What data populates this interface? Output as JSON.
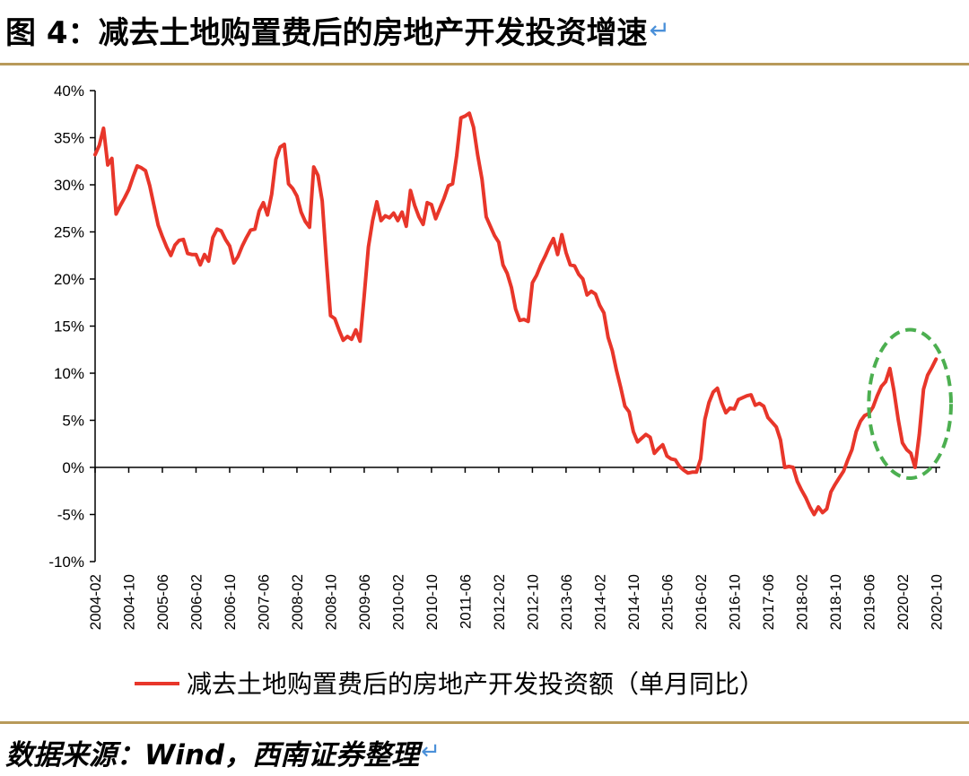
{
  "figure": {
    "title": "图 4：减去土地购置费后的房地产开发投资增速",
    "source": "数据来源：Wind，西南证券整理",
    "return_glyph": "↵"
  },
  "colors": {
    "series": "#e8362a",
    "highlight": "#4caf50",
    "rule": "#b89a5a",
    "axis": "#000000"
  },
  "chart_data": {
    "type": "line",
    "title": "",
    "xlabel": "",
    "ylabel": "",
    "ylim": [
      -10,
      40
    ],
    "y_ticks": [
      -10,
      -5,
      0,
      5,
      10,
      15,
      20,
      25,
      30,
      35,
      40
    ],
    "y_tick_labels": [
      "-10%",
      "-5%",
      "0%",
      "5%",
      "10%",
      "15%",
      "20%",
      "25%",
      "30%",
      "35%",
      "40%"
    ],
    "x_tick_labels": [
      "2004-02",
      "2004-10",
      "2005-06",
      "2006-02",
      "2006-10",
      "2007-06",
      "2008-02",
      "2008-10",
      "2009-06",
      "2010-02",
      "2010-10",
      "2011-06",
      "2012-02",
      "2012-10",
      "2013-06",
      "2014-02",
      "2014-10",
      "2015-06",
      "2016-02",
      "2016-10",
      "2017-06",
      "2018-02",
      "2018-10",
      "2019-06",
      "2020-02",
      "2020-10"
    ],
    "x_range": [
      "2004-02",
      "2020-11"
    ],
    "grid": false,
    "legend_position": "bottom",
    "series": [
      {
        "name": "减去土地购置费后的房地产开发投资额（单月同比）",
        "color": "#e8362a",
        "points": [
          [
            "2004-02",
            33.2
          ],
          [
            "2004-03",
            34.2
          ],
          [
            "2004-04",
            36.0
          ],
          [
            "2004-05",
            32.1
          ],
          [
            "2004-06",
            32.8
          ],
          [
            "2004-07",
            26.9
          ],
          [
            "2004-08",
            27.8
          ],
          [
            "2004-09",
            28.6
          ],
          [
            "2004-10",
            29.5
          ],
          [
            "2004-11",
            30.8
          ],
          [
            "2004-12",
            32.0
          ],
          [
            "2005-01",
            31.8
          ],
          [
            "2005-02",
            31.5
          ],
          [
            "2005-03",
            29.9
          ],
          [
            "2005-04",
            27.8
          ],
          [
            "2005-05",
            25.7
          ],
          [
            "2005-06",
            24.5
          ],
          [
            "2005-07",
            23.4
          ],
          [
            "2005-08",
            22.5
          ],
          [
            "2005-09",
            23.6
          ],
          [
            "2005-10",
            24.1
          ],
          [
            "2005-11",
            24.2
          ],
          [
            "2005-12",
            22.7
          ],
          [
            "2006-01",
            22.6
          ],
          [
            "2006-02",
            22.6
          ],
          [
            "2006-03",
            21.5
          ],
          [
            "2006-04",
            22.6
          ],
          [
            "2006-05",
            21.9
          ],
          [
            "2006-06",
            24.4
          ],
          [
            "2006-07",
            25.3
          ],
          [
            "2006-08",
            25.1
          ],
          [
            "2006-09",
            24.2
          ],
          [
            "2006-10",
            23.5
          ],
          [
            "2006-11",
            21.7
          ],
          [
            "2006-12",
            22.4
          ],
          [
            "2007-01",
            23.5
          ],
          [
            "2007-02",
            24.4
          ],
          [
            "2007-03",
            25.2
          ],
          [
            "2007-04",
            25.3
          ],
          [
            "2007-05",
            27.2
          ],
          [
            "2007-06",
            28.1
          ],
          [
            "2007-07",
            26.8
          ],
          [
            "2007-08",
            29.0
          ],
          [
            "2007-09",
            32.7
          ],
          [
            "2007-10",
            34.0
          ],
          [
            "2007-11",
            34.3
          ],
          [
            "2007-12",
            30.1
          ],
          [
            "2008-01",
            29.6
          ],
          [
            "2008-02",
            28.8
          ],
          [
            "2008-03",
            27.1
          ],
          [
            "2008-04",
            26.1
          ],
          [
            "2008-05",
            25.5
          ],
          [
            "2008-06",
            31.9
          ],
          [
            "2008-07",
            31.0
          ],
          [
            "2008-08",
            28.3
          ],
          [
            "2008-09",
            21.9
          ],
          [
            "2008-10",
            16.1
          ],
          [
            "2008-11",
            15.8
          ],
          [
            "2008-12",
            14.6
          ],
          [
            "2009-01",
            13.5
          ],
          [
            "2009-02",
            13.9
          ],
          [
            "2009-03",
            13.6
          ],
          [
            "2009-04",
            14.6
          ],
          [
            "2009-05",
            13.4
          ],
          [
            "2009-06",
            18.2
          ],
          [
            "2009-07",
            23.4
          ],
          [
            "2009-08",
            26.2
          ],
          [
            "2009-09",
            28.2
          ],
          [
            "2009-10",
            26.2
          ],
          [
            "2009-11",
            26.7
          ],
          [
            "2009-12",
            26.5
          ],
          [
            "2010-01",
            27.0
          ],
          [
            "2010-02",
            26.2
          ],
          [
            "2010-03",
            27.1
          ],
          [
            "2010-04",
            25.6
          ],
          [
            "2010-05",
            29.4
          ],
          [
            "2010-06",
            27.8
          ],
          [
            "2010-07",
            26.6
          ],
          [
            "2010-08",
            25.8
          ],
          [
            "2010-09",
            28.1
          ],
          [
            "2010-10",
            27.9
          ],
          [
            "2010-11",
            26.4
          ],
          [
            "2010-12",
            27.5
          ],
          [
            "2011-01",
            28.6
          ],
          [
            "2011-02",
            29.9
          ],
          [
            "2011-03",
            30.1
          ],
          [
            "2011-04",
            33.1
          ],
          [
            "2011-05",
            37.1
          ],
          [
            "2011-06",
            37.3
          ],
          [
            "2011-07",
            37.6
          ],
          [
            "2011-08",
            36.1
          ],
          [
            "2011-09",
            33.1
          ],
          [
            "2011-10",
            30.6
          ],
          [
            "2011-11",
            26.6
          ],
          [
            "2011-12",
            25.6
          ],
          [
            "2012-01",
            24.6
          ],
          [
            "2012-02",
            23.9
          ],
          [
            "2012-03",
            21.5
          ],
          [
            "2012-04",
            20.6
          ],
          [
            "2012-05",
            19.1
          ],
          [
            "2012-06",
            16.8
          ],
          [
            "2012-07",
            15.6
          ],
          [
            "2012-08",
            15.7
          ],
          [
            "2012-09",
            15.5
          ],
          [
            "2012-10",
            19.6
          ],
          [
            "2012-11",
            20.4
          ],
          [
            "2012-12",
            21.5
          ],
          [
            "2013-01",
            22.4
          ],
          [
            "2013-02",
            23.4
          ],
          [
            "2013-03",
            24.3
          ],
          [
            "2013-04",
            22.6
          ],
          [
            "2013-05",
            24.7
          ],
          [
            "2013-06",
            22.8
          ],
          [
            "2013-07",
            21.5
          ],
          [
            "2013-08",
            21.4
          ],
          [
            "2013-09",
            20.5
          ],
          [
            "2013-10",
            20.0
          ],
          [
            "2013-11",
            18.3
          ],
          [
            "2013-12",
            18.7
          ],
          [
            "2014-01",
            18.4
          ],
          [
            "2014-02",
            17.2
          ],
          [
            "2014-03",
            16.4
          ],
          [
            "2014-04",
            13.8
          ],
          [
            "2014-05",
            12.4
          ],
          [
            "2014-06",
            10.3
          ],
          [
            "2014-07",
            8.5
          ],
          [
            "2014-08",
            6.5
          ],
          [
            "2014-09",
            5.9
          ],
          [
            "2014-10",
            3.8
          ],
          [
            "2014-11",
            2.7
          ],
          [
            "2014-12",
            3.1
          ],
          [
            "2015-01",
            3.5
          ],
          [
            "2015-02",
            3.2
          ],
          [
            "2015-03",
            1.5
          ],
          [
            "2015-04",
            2.0
          ],
          [
            "2015-05",
            2.4
          ],
          [
            "2015-06",
            1.2
          ],
          [
            "2015-07",
            0.9
          ],
          [
            "2015-08",
            0.8
          ],
          [
            "2015-09",
            0.1
          ],
          [
            "2015-10",
            -0.3
          ],
          [
            "2015-11",
            -0.6
          ],
          [
            "2015-12",
            -0.5
          ],
          [
            "2016-01",
            -0.5
          ],
          [
            "2016-02",
            0.9
          ],
          [
            "2016-03",
            5.1
          ],
          [
            "2016-04",
            6.9
          ],
          [
            "2016-05",
            8.0
          ],
          [
            "2016-06",
            8.4
          ],
          [
            "2016-07",
            6.9
          ],
          [
            "2016-08",
            5.8
          ],
          [
            "2016-09",
            6.3
          ],
          [
            "2016-10",
            6.2
          ],
          [
            "2016-11",
            7.2
          ],
          [
            "2016-12",
            7.4
          ],
          [
            "2017-01",
            7.6
          ],
          [
            "2017-02",
            7.7
          ],
          [
            "2017-03",
            6.6
          ],
          [
            "2017-04",
            6.8
          ],
          [
            "2017-05",
            6.5
          ],
          [
            "2017-06",
            5.3
          ],
          [
            "2017-07",
            4.8
          ],
          [
            "2017-08",
            4.3
          ],
          [
            "2017-09",
            2.9
          ],
          [
            "2017-10",
            0.0
          ],
          [
            "2017-11",
            0.1
          ],
          [
            "2017-12",
            0.0
          ],
          [
            "2018-01",
            -1.5
          ],
          [
            "2018-02",
            -2.4
          ],
          [
            "2018-03",
            -3.2
          ],
          [
            "2018-04",
            -4.2
          ],
          [
            "2018-05",
            -5.0
          ],
          [
            "2018-06",
            -4.2
          ],
          [
            "2018-07",
            -4.8
          ],
          [
            "2018-08",
            -4.4
          ],
          [
            "2018-09",
            -2.6
          ],
          [
            "2018-10",
            -1.8
          ],
          [
            "2018-11",
            -1.1
          ],
          [
            "2018-12",
            -0.4
          ],
          [
            "2019-01",
            0.8
          ],
          [
            "2019-02",
            1.9
          ],
          [
            "2019-03",
            3.8
          ],
          [
            "2019-04",
            4.9
          ],
          [
            "2019-05",
            5.5
          ],
          [
            "2019-06",
            5.7
          ],
          [
            "2019-07",
            6.4
          ],
          [
            "2019-08",
            7.6
          ],
          [
            "2019-09",
            8.6
          ],
          [
            "2019-10",
            9.1
          ],
          [
            "2019-11",
            10.5
          ],
          [
            "2019-12",
            8.1
          ],
          [
            "2020-01",
            5.1
          ],
          [
            "2020-02",
            2.6
          ],
          [
            "2020-03",
            1.9
          ],
          [
            "2020-04",
            1.5
          ],
          [
            "2020-05",
            0.0
          ],
          [
            "2020-06",
            3.5
          ],
          [
            "2020-07",
            8.3
          ],
          [
            "2020-08",
            9.8
          ],
          [
            "2020-09",
            10.6
          ],
          [
            "2020-10",
            11.5
          ]
        ]
      }
    ],
    "annotations": [
      {
        "type": "dashed-ellipse",
        "x_from": "2019-06",
        "x_to": "2020-11",
        "y_from": 0,
        "y_to": 15,
        "color": "#4caf50"
      }
    ]
  }
}
